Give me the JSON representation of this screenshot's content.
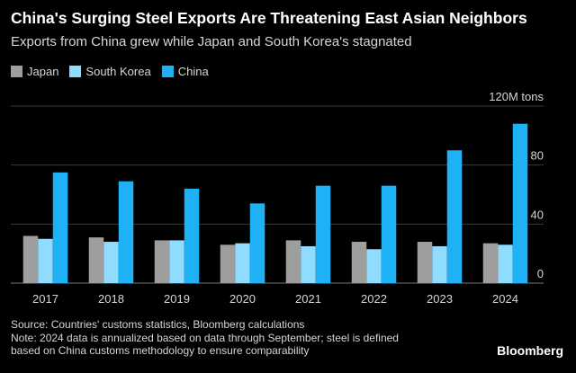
{
  "header": {
    "title": "China's Surging Steel Exports Are Threatening East Asian Neighbors",
    "subtitle": "Exports from China grew while Japan and South Korea's stagnated"
  },
  "legend": [
    {
      "label": "Japan",
      "color": "#9e9e9e"
    },
    {
      "label": "South Korea",
      "color": "#8fdcff"
    },
    {
      "label": "China",
      "color": "#1fb1f5"
    }
  ],
  "chart_data": {
    "type": "bar",
    "title": "China's Surging Steel Exports Are Threatening East Asian Neighbors",
    "subtitle": "Exports from China grew while Japan and South Korea's stagnated",
    "xlabel": "",
    "ylabel": "",
    "unit_label": "120M tons",
    "ylim": [
      0,
      120
    ],
    "yticks": [
      0,
      40,
      80
    ],
    "grid": true,
    "legend_position": "top-left",
    "categories": [
      "2017",
      "2018",
      "2019",
      "2020",
      "2021",
      "2022",
      "2023",
      "2024"
    ],
    "series": [
      {
        "name": "Japan",
        "color": "#9e9e9e",
        "values": [
          32,
          31,
          29,
          26,
          29,
          28,
          28,
          27
        ]
      },
      {
        "name": "South Korea",
        "color": "#8fdcff",
        "values": [
          30,
          28,
          29,
          27,
          25,
          23,
          25,
          26
        ]
      },
      {
        "name": "China",
        "color": "#1fb1f5",
        "values": [
          75,
          69,
          64,
          54,
          66,
          66,
          90,
          108
        ]
      }
    ]
  },
  "footer": {
    "source": "Source: Countries' customs statistics, Bloomberg calculations",
    "note_line1": "Note: 2024 data is annualized based on data through September; steel is defined",
    "note_line2": "based on China customs methodology to ensure comparability",
    "brand": "Bloomberg"
  }
}
